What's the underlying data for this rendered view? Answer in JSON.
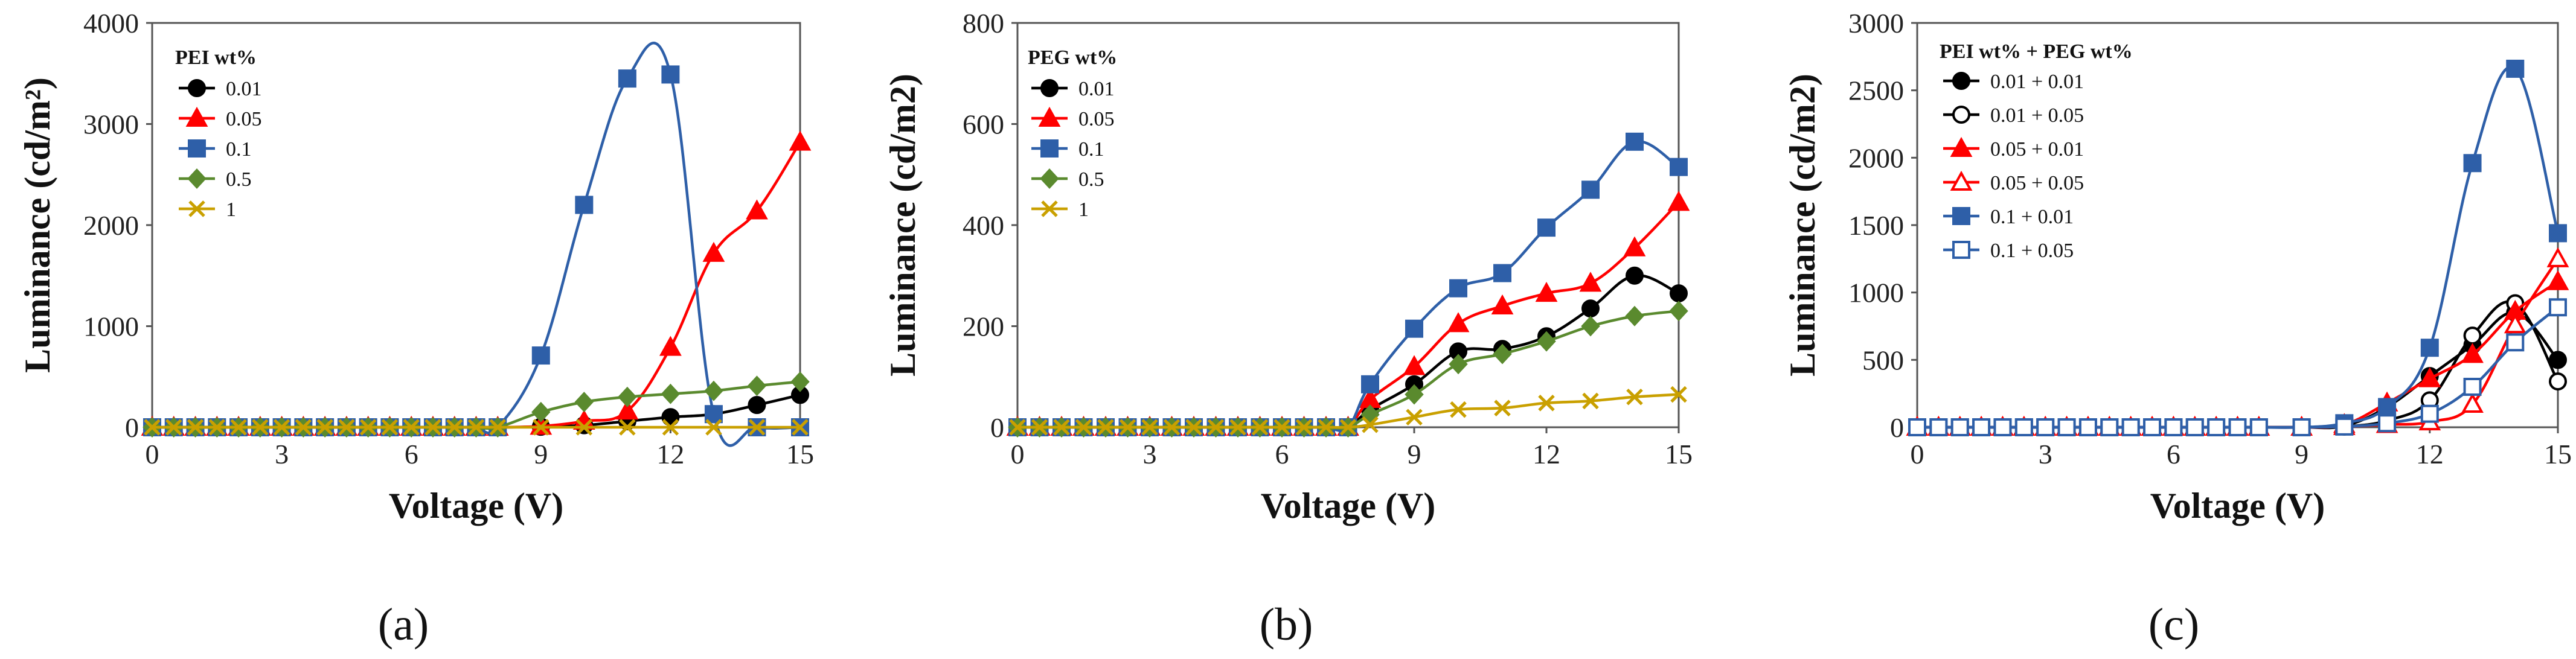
{
  "figure": {
    "panel_labels": [
      "(a)",
      "(b)",
      "(c)"
    ]
  },
  "chart_data": [
    {
      "type": "line",
      "panel": "(a)",
      "title": "",
      "xlabel": "Voltage (V)",
      "ylabel": "Luminance (cd/m²)",
      "xlim": [
        0,
        15
      ],
      "ylim": [
        0,
        4000
      ],
      "xticks": [
        0,
        3,
        6,
        9,
        12,
        15
      ],
      "yticks": [
        0,
        1000,
        2000,
        3000,
        4000
      ],
      "grid": false,
      "legend_title": "PEI wt%",
      "legend_position": "top-left",
      "series": [
        {
          "name": "0.01",
          "color": "#000000",
          "marker": "circle",
          "filled": true,
          "x": [
            0,
            0.5,
            1,
            1.5,
            2,
            2.5,
            3,
            3.5,
            4,
            4.5,
            5,
            5.5,
            6,
            6.5,
            7,
            7.5,
            8,
            9,
            10,
            11,
            12,
            13,
            14,
            15
          ],
          "y": [
            0,
            0,
            0,
            0,
            0,
            0,
            0,
            0,
            0,
            0,
            0,
            0,
            0,
            0,
            0,
            0,
            0,
            5,
            20,
            60,
            100,
            130,
            220,
            320
          ]
        },
        {
          "name": "0.05",
          "color": "#ff0000",
          "marker": "triangle",
          "filled": true,
          "x": [
            0,
            0.5,
            1,
            1.5,
            2,
            2.5,
            3,
            3.5,
            4,
            4.5,
            5,
            5.5,
            6,
            6.5,
            7,
            7.5,
            8,
            9,
            10,
            11,
            12,
            13,
            14,
            15
          ],
          "y": [
            0,
            0,
            0,
            0,
            0,
            0,
            0,
            0,
            0,
            0,
            0,
            0,
            0,
            0,
            0,
            0,
            0,
            10,
            60,
            160,
            790,
            1720,
            2140,
            2820
          ]
        },
        {
          "name": "0.1",
          "color": "#2e5fa8",
          "marker": "square",
          "filled": true,
          "x": [
            0,
            0.5,
            1,
            1.5,
            2,
            2.5,
            3,
            3.5,
            4,
            4.5,
            5,
            5.5,
            6,
            6.5,
            7,
            7.5,
            8,
            9,
            10,
            11,
            12,
            13,
            14,
            15
          ],
          "y": [
            0,
            0,
            0,
            0,
            0,
            0,
            0,
            0,
            0,
            0,
            0,
            0,
            0,
            0,
            0,
            0,
            0,
            710,
            2200,
            3450,
            3490,
            130,
            0,
            0
          ]
        },
        {
          "name": "0.5",
          "color": "#5a8a2e",
          "marker": "diamond",
          "filled": true,
          "x": [
            0,
            0.5,
            1,
            1.5,
            2,
            2.5,
            3,
            3.5,
            4,
            4.5,
            5,
            5.5,
            6,
            6.5,
            7,
            7.5,
            8,
            9,
            10,
            11,
            12,
            13,
            14,
            15
          ],
          "y": [
            0,
            0,
            0,
            0,
            0,
            0,
            0,
            0,
            0,
            0,
            0,
            0,
            0,
            0,
            0,
            0,
            0,
            150,
            250,
            300,
            330,
            360,
            410,
            450
          ]
        },
        {
          "name": "1",
          "color": "#c9a000",
          "marker": "x",
          "filled": false,
          "x": [
            0,
            0.5,
            1,
            1.5,
            2,
            2.5,
            3,
            3.5,
            4,
            4.5,
            5,
            5.5,
            6,
            6.5,
            7,
            7.5,
            8,
            9,
            10,
            11,
            12,
            13,
            14,
            15
          ],
          "y": [
            0,
            0,
            0,
            0,
            0,
            0,
            0,
            0,
            0,
            0,
            0,
            0,
            0,
            0,
            0,
            0,
            0,
            0,
            0,
            0,
            0,
            0,
            0,
            0
          ]
        }
      ]
    },
    {
      "type": "line",
      "panel": "(b)",
      "title": "",
      "xlabel": "Voltage (V)",
      "ylabel": "Luminance (cd/m2)",
      "xlim": [
        0,
        15
      ],
      "ylim": [
        0,
        800
      ],
      "xticks": [
        0,
        3,
        6,
        9,
        12,
        15
      ],
      "yticks": [
        0,
        200,
        400,
        600,
        800
      ],
      "grid": false,
      "legend_title": "PEG wt%",
      "legend_position": "top-left",
      "series": [
        {
          "name": "0.01",
          "color": "#000000",
          "marker": "circle",
          "filled": true,
          "x": [
            0,
            0.5,
            1,
            1.5,
            2,
            2.5,
            3,
            3.5,
            4,
            4.5,
            5,
            5.5,
            6,
            6.5,
            7,
            7.5,
            8,
            9,
            10,
            11,
            12,
            13,
            14,
            15
          ],
          "y": [
            0,
            0,
            0,
            0,
            0,
            0,
            0,
            0,
            0,
            0,
            0,
            0,
            0,
            0,
            0,
            0,
            35,
            85,
            150,
            155,
            180,
            235,
            300,
            265
          ]
        },
        {
          "name": "0.05",
          "color": "#ff0000",
          "marker": "triangle",
          "filled": true,
          "x": [
            0,
            0.5,
            1,
            1.5,
            2,
            2.5,
            3,
            3.5,
            4,
            4.5,
            5,
            5.5,
            6,
            6.5,
            7,
            7.5,
            8,
            9,
            10,
            11,
            12,
            13,
            14,
            15
          ],
          "y": [
            0,
            0,
            0,
            0,
            0,
            0,
            0,
            0,
            0,
            0,
            0,
            0,
            0,
            0,
            0,
            0,
            55,
            120,
            205,
            240,
            265,
            285,
            355,
            445
          ]
        },
        {
          "name": "0.1",
          "color": "#2e5fa8",
          "marker": "square",
          "filled": true,
          "x": [
            0,
            0.5,
            1,
            1.5,
            2,
            2.5,
            3,
            3.5,
            4,
            4.5,
            5,
            5.5,
            6,
            6.5,
            7,
            7.5,
            8,
            9,
            10,
            11,
            12,
            13,
            14,
            15
          ],
          "y": [
            0,
            0,
            0,
            0,
            0,
            0,
            0,
            0,
            0,
            0,
            0,
            0,
            0,
            0,
            0,
            0,
            85,
            195,
            275,
            305,
            395,
            470,
            565,
            515
          ]
        },
        {
          "name": "0.5",
          "color": "#5a8a2e",
          "marker": "diamond",
          "filled": true,
          "x": [
            0,
            0.5,
            1,
            1.5,
            2,
            2.5,
            3,
            3.5,
            4,
            4.5,
            5,
            5.5,
            6,
            6.5,
            7,
            7.5,
            8,
            9,
            10,
            11,
            12,
            13,
            14,
            15
          ],
          "y": [
            0,
            0,
            0,
            0,
            0,
            0,
            0,
            0,
            0,
            0,
            0,
            0,
            0,
            0,
            0,
            0,
            25,
            65,
            125,
            145,
            170,
            200,
            220,
            230
          ]
        },
        {
          "name": "1",
          "color": "#c9a000",
          "marker": "x",
          "filled": false,
          "x": [
            0,
            0.5,
            1,
            1.5,
            2,
            2.5,
            3,
            3.5,
            4,
            4.5,
            5,
            5.5,
            6,
            6.5,
            7,
            7.5,
            8,
            9,
            10,
            11,
            12,
            13,
            14,
            15
          ],
          "y": [
            0,
            0,
            0,
            0,
            0,
            0,
            0,
            0,
            0,
            0,
            0,
            0,
            0,
            0,
            0,
            0,
            5,
            20,
            35,
            38,
            48,
            52,
            60,
            65
          ]
        }
      ]
    },
    {
      "type": "line",
      "panel": "(c)",
      "title": "",
      "xlabel": "Voltage (V)",
      "ylabel": "Luminance (cd/m2)",
      "xlim": [
        0,
        15
      ],
      "ylim": [
        0,
        3000
      ],
      "xticks": [
        0,
        3,
        6,
        9,
        12,
        15
      ],
      "yticks": [
        0,
        500,
        1000,
        1500,
        2000,
        2500,
        3000
      ],
      "grid": false,
      "legend_title": "PEI wt% + PEG wt%",
      "legend_position": "top-left",
      "series": [
        {
          "name": "0.01 + 0.01",
          "color": "#000000",
          "marker": "circle",
          "filled": true,
          "x": [
            0,
            0.5,
            1,
            1.5,
            2,
            2.5,
            3,
            3.5,
            4,
            4.5,
            5,
            5.5,
            6,
            6.5,
            7,
            7.5,
            8,
            9,
            10,
            11,
            12,
            13,
            14,
            15
          ],
          "y": [
            0,
            0,
            0,
            0,
            0,
            0,
            0,
            0,
            0,
            0,
            0,
            0,
            0,
            0,
            0,
            0,
            0,
            0,
            10,
            150,
            380,
            610,
            850,
            500
          ]
        },
        {
          "name": "0.01 + 0.05",
          "color": "#000000",
          "marker": "circle",
          "filled": false,
          "x": [
            0,
            0.5,
            1,
            1.5,
            2,
            2.5,
            3,
            3.5,
            4,
            4.5,
            5,
            5.5,
            6,
            6.5,
            7,
            7.5,
            8,
            9,
            10,
            11,
            12,
            13,
            14,
            15
          ],
          "y": [
            0,
            0,
            0,
            0,
            0,
            0,
            0,
            0,
            0,
            0,
            0,
            0,
            0,
            0,
            0,
            0,
            0,
            0,
            5,
            50,
            200,
            680,
            920,
            340
          ]
        },
        {
          "name": "0.05 + 0.01",
          "color": "#ff0000",
          "marker": "triangle",
          "filled": true,
          "x": [
            0,
            0.5,
            1,
            1.5,
            2,
            2.5,
            3,
            3.5,
            4,
            4.5,
            5,
            5.5,
            6,
            6.5,
            7,
            7.5,
            8,
            9,
            10,
            11,
            12,
            13,
            14,
            15
          ],
          "y": [
            0,
            0,
            0,
            0,
            0,
            0,
            0,
            0,
            0,
            0,
            0,
            0,
            0,
            0,
            0,
            0,
            0,
            0,
            20,
            180,
            360,
            540,
            860,
            1080
          ]
        },
        {
          "name": "0.05 + 0.05",
          "color": "#ff0000",
          "marker": "triangle",
          "filled": false,
          "x": [
            0,
            0.5,
            1,
            1.5,
            2,
            2.5,
            3,
            3.5,
            4,
            4.5,
            5,
            5.5,
            6,
            6.5,
            7,
            7.5,
            8,
            9,
            10,
            11,
            12,
            13,
            14,
            15
          ],
          "y": [
            0,
            0,
            0,
            0,
            0,
            0,
            0,
            0,
            0,
            0,
            0,
            0,
            0,
            0,
            0,
            0,
            0,
            0,
            5,
            20,
            40,
            170,
            760,
            1250
          ]
        },
        {
          "name": "0.1 + 0.01",
          "color": "#2e5fa8",
          "marker": "square",
          "filled": true,
          "x": [
            0,
            0.5,
            1,
            1.5,
            2,
            2.5,
            3,
            3.5,
            4,
            4.5,
            5,
            5.5,
            6,
            6.5,
            7,
            7.5,
            8,
            9,
            10,
            11,
            12,
            13,
            14,
            15
          ],
          "y": [
            0,
            0,
            0,
            0,
            0,
            0,
            0,
            0,
            0,
            0,
            0,
            0,
            0,
            0,
            0,
            0,
            0,
            0,
            30,
            150,
            590,
            1960,
            2660,
            1440
          ]
        },
        {
          "name": "0.1 + 0.05",
          "color": "#2e5fa8",
          "marker": "square",
          "filled": false,
          "x": [
            0,
            0.5,
            1,
            1.5,
            2,
            2.5,
            3,
            3.5,
            4,
            4.5,
            5,
            5.5,
            6,
            6.5,
            7,
            7.5,
            8,
            9,
            10,
            11,
            12,
            13,
            14,
            15
          ],
          "y": [
            0,
            0,
            0,
            0,
            0,
            0,
            0,
            0,
            0,
            0,
            0,
            0,
            0,
            0,
            0,
            0,
            0,
            0,
            5,
            30,
            100,
            300,
            630,
            890
          ]
        }
      ]
    }
  ]
}
